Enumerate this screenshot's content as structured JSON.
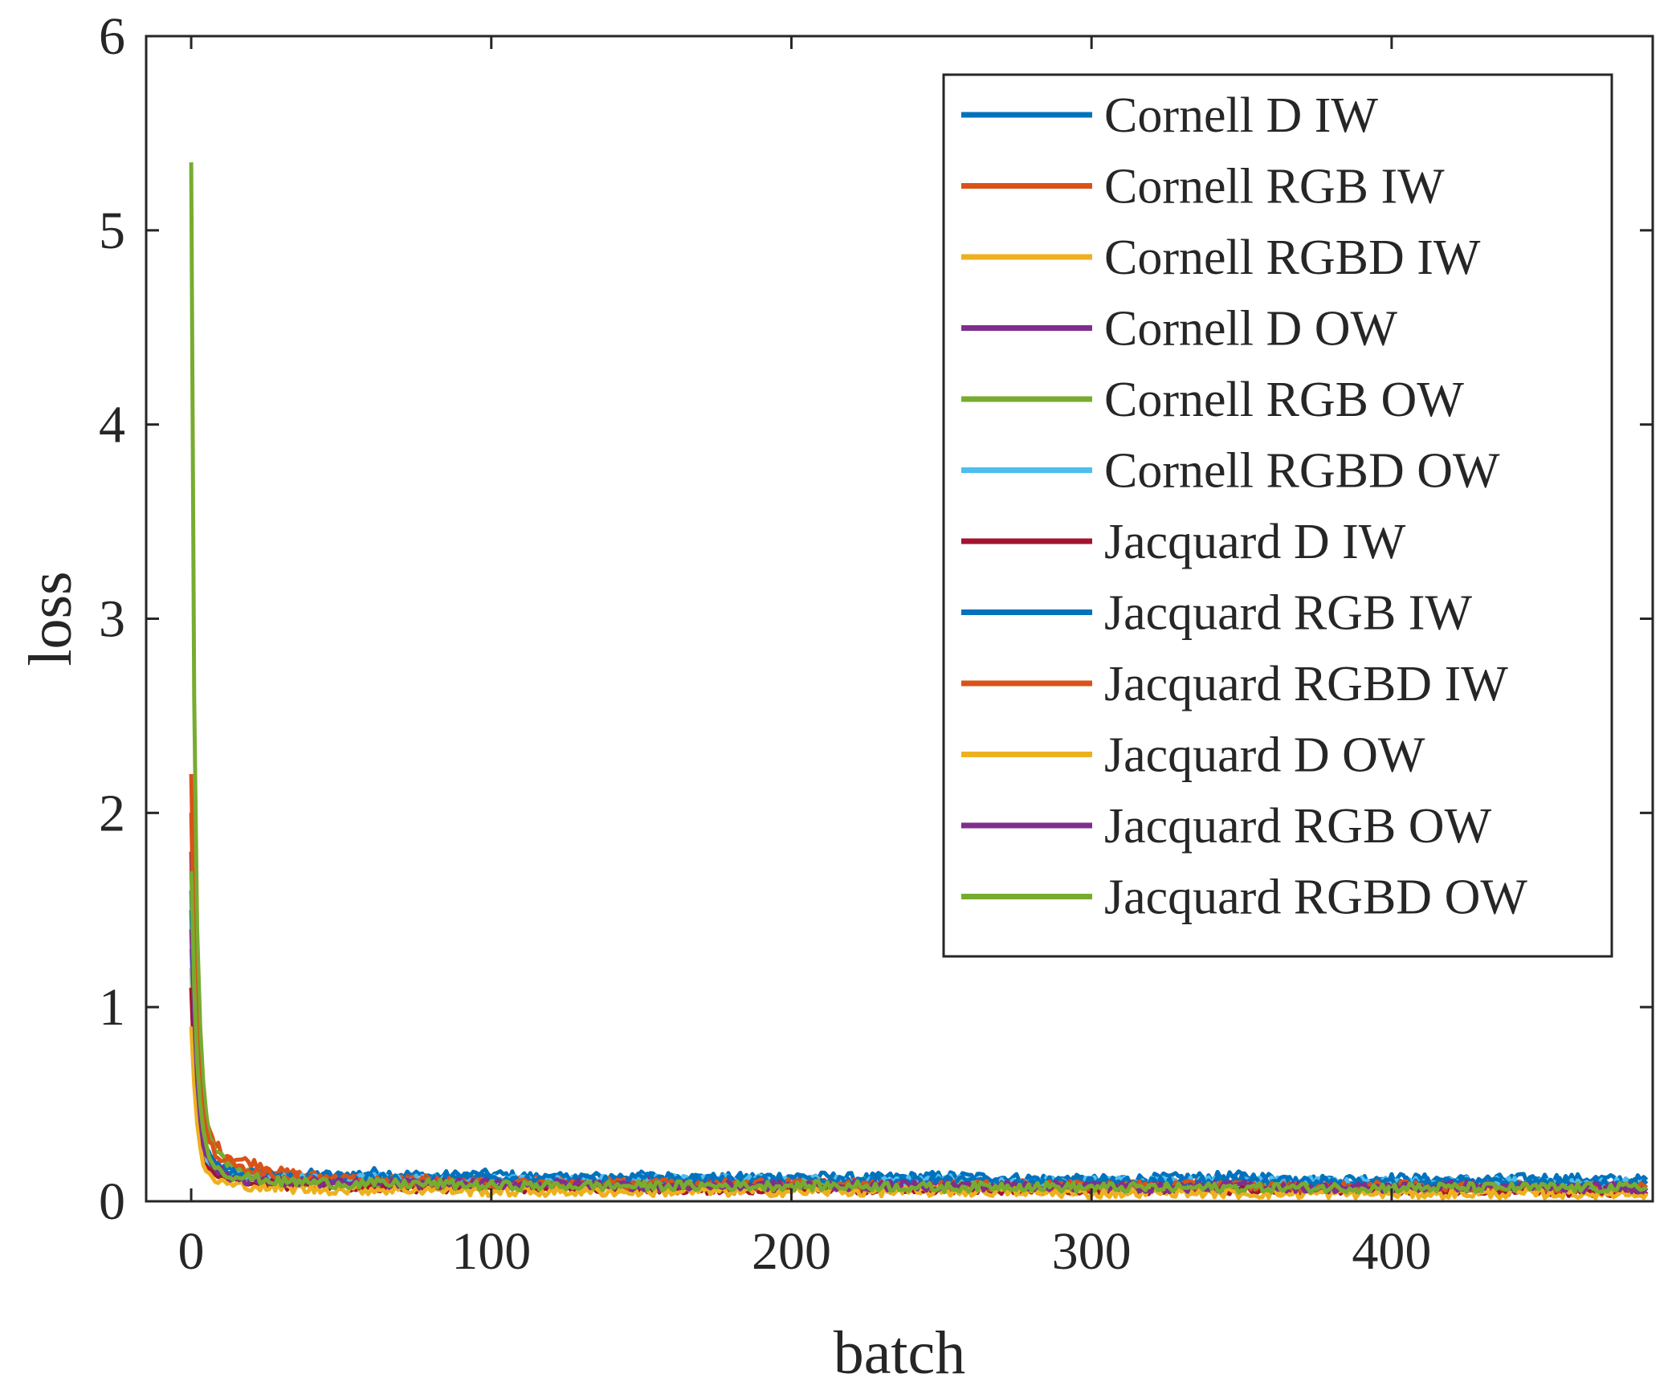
{
  "chart_data": {
    "type": "line",
    "title": "",
    "xlabel": "batch",
    "ylabel": "loss",
    "xlim": [
      -15,
      487
    ],
    "ylim": [
      0,
      6
    ],
    "xticks": [
      0,
      100,
      200,
      300,
      400
    ],
    "xtick_labels": [
      "0",
      "100",
      "200",
      "300",
      "400"
    ],
    "yticks": [
      0,
      1,
      2,
      3,
      4,
      5,
      6
    ],
    "ytick_labels": [
      "0",
      "1",
      "2",
      "3",
      "4",
      "5",
      "6"
    ],
    "grid": false,
    "legend_position": "top-right",
    "x": [
      0,
      1,
      2,
      3,
      4,
      5,
      6,
      8,
      10,
      12,
      15,
      20,
      25,
      30,
      40,
      50,
      60,
      80,
      100,
      120,
      150,
      175,
      200,
      225,
      250,
      275,
      300,
      325,
      350,
      375,
      400,
      425,
      450,
      485
    ],
    "series": [
      {
        "name": "Cornell D IW",
        "color": "#0072BD",
        "values": [
          1.5,
          1.0,
          0.65,
          0.45,
          0.32,
          0.26,
          0.22,
          0.19,
          0.17,
          0.16,
          0.15,
          0.14,
          0.14,
          0.13,
          0.14,
          0.13,
          0.15,
          0.13,
          0.14,
          0.12,
          0.13,
          0.12,
          0.13,
          0.12,
          0.13,
          0.12,
          0.11,
          0.12,
          0.13,
          0.11,
          0.12,
          0.11,
          0.12,
          0.11
        ]
      },
      {
        "name": "Cornell RGB IW",
        "color": "#D95319",
        "values": [
          2.2,
          1.4,
          0.95,
          0.7,
          0.5,
          0.42,
          0.36,
          0.3,
          0.26,
          0.24,
          0.22,
          0.2,
          0.18,
          0.15,
          0.13,
          0.12,
          0.11,
          0.11,
          0.1,
          0.1,
          0.1,
          0.09,
          0.1,
          0.09,
          0.09,
          0.09,
          0.08,
          0.09,
          0.08,
          0.08,
          0.08,
          0.08,
          0.08,
          0.07
        ]
      },
      {
        "name": "Cornell RGBD IW",
        "color": "#EDB120",
        "values": [
          1.2,
          0.8,
          0.5,
          0.35,
          0.27,
          0.22,
          0.19,
          0.16,
          0.14,
          0.13,
          0.12,
          0.11,
          0.1,
          0.1,
          0.09,
          0.09,
          0.08,
          0.08,
          0.08,
          0.07,
          0.07,
          0.07,
          0.07,
          0.07,
          0.06,
          0.06,
          0.06,
          0.06,
          0.06,
          0.06,
          0.06,
          0.06,
          0.05,
          0.05
        ]
      },
      {
        "name": "Cornell D OW",
        "color": "#7E2F8E",
        "values": [
          1.8,
          1.1,
          0.7,
          0.48,
          0.34,
          0.27,
          0.22,
          0.18,
          0.16,
          0.14,
          0.13,
          0.12,
          0.11,
          0.11,
          0.1,
          0.1,
          0.1,
          0.09,
          0.1,
          0.09,
          0.1,
          0.09,
          0.09,
          0.08,
          0.09,
          0.08,
          0.08,
          0.08,
          0.08,
          0.08,
          0.08,
          0.07,
          0.08,
          0.07
        ]
      },
      {
        "name": "Cornell RGB OW",
        "color": "#77AC30",
        "values": [
          5.35,
          2.6,
          1.4,
          0.9,
          0.6,
          0.45,
          0.36,
          0.28,
          0.23,
          0.2,
          0.17,
          0.14,
          0.12,
          0.11,
          0.1,
          0.1,
          0.09,
          0.09,
          0.09,
          0.08,
          0.09,
          0.08,
          0.08,
          0.08,
          0.08,
          0.08,
          0.07,
          0.08,
          0.07,
          0.07,
          0.07,
          0.07,
          0.07,
          0.07
        ]
      },
      {
        "name": "Cornell RGBD OW",
        "color": "#4DBEEE",
        "values": [
          1.3,
          0.9,
          0.6,
          0.42,
          0.3,
          0.24,
          0.2,
          0.17,
          0.15,
          0.14,
          0.13,
          0.12,
          0.12,
          0.12,
          0.11,
          0.11,
          0.12,
          0.11,
          0.11,
          0.11,
          0.11,
          0.11,
          0.11,
          0.1,
          0.11,
          0.1,
          0.1,
          0.1,
          0.1,
          0.1,
          0.1,
          0.1,
          0.1,
          0.09
        ]
      },
      {
        "name": "Jacquard D IW",
        "color": "#A2142F",
        "values": [
          1.1,
          0.7,
          0.45,
          0.3,
          0.22,
          0.18,
          0.15,
          0.13,
          0.12,
          0.11,
          0.1,
          0.09,
          0.09,
          0.08,
          0.08,
          0.08,
          0.07,
          0.07,
          0.07,
          0.07,
          0.07,
          0.06,
          0.07,
          0.06,
          0.06,
          0.06,
          0.06,
          0.06,
          0.06,
          0.06,
          0.06,
          0.06,
          0.05,
          0.05
        ]
      },
      {
        "name": "Jacquard RGB IW",
        "color": "#0072BD",
        "values": [
          1.6,
          1.05,
          0.7,
          0.48,
          0.35,
          0.28,
          0.23,
          0.19,
          0.17,
          0.16,
          0.15,
          0.14,
          0.13,
          0.13,
          0.12,
          0.12,
          0.12,
          0.11,
          0.12,
          0.11,
          0.12,
          0.11,
          0.11,
          0.1,
          0.11,
          0.1,
          0.1,
          0.1,
          0.11,
          0.1,
          0.1,
          0.1,
          0.1,
          0.09
        ]
      },
      {
        "name": "Jacquard RGBD IW",
        "color": "#D95319",
        "values": [
          2.0,
          1.3,
          0.85,
          0.6,
          0.45,
          0.36,
          0.3,
          0.25,
          0.22,
          0.2,
          0.18,
          0.17,
          0.15,
          0.13,
          0.12,
          0.11,
          0.1,
          0.1,
          0.09,
          0.09,
          0.09,
          0.09,
          0.09,
          0.08,
          0.08,
          0.08,
          0.08,
          0.08,
          0.08,
          0.07,
          0.08,
          0.07,
          0.07,
          0.07
        ]
      },
      {
        "name": "Jacquard D OW",
        "color": "#EDB120",
        "values": [
          0.9,
          0.6,
          0.4,
          0.28,
          0.2,
          0.16,
          0.13,
          0.11,
          0.1,
          0.09,
          0.08,
          0.08,
          0.07,
          0.07,
          0.06,
          0.06,
          0.06,
          0.06,
          0.05,
          0.05,
          0.05,
          0.05,
          0.05,
          0.05,
          0.05,
          0.05,
          0.04,
          0.05,
          0.04,
          0.04,
          0.04,
          0.04,
          0.04,
          0.04
        ]
      },
      {
        "name": "Jacquard RGB OW",
        "color": "#7E2F8E",
        "values": [
          1.4,
          0.95,
          0.62,
          0.42,
          0.3,
          0.24,
          0.2,
          0.17,
          0.15,
          0.13,
          0.12,
          0.11,
          0.1,
          0.1,
          0.1,
          0.09,
          0.09,
          0.09,
          0.09,
          0.09,
          0.08,
          0.08,
          0.08,
          0.08,
          0.08,
          0.08,
          0.08,
          0.07,
          0.08,
          0.07,
          0.07,
          0.08,
          0.07,
          0.07
        ]
      },
      {
        "name": "Jacquard RGBD OW",
        "color": "#77AC30",
        "values": [
          1.7,
          1.1,
          0.72,
          0.5,
          0.36,
          0.28,
          0.23,
          0.19,
          0.16,
          0.14,
          0.13,
          0.12,
          0.11,
          0.1,
          0.1,
          0.09,
          0.09,
          0.09,
          0.08,
          0.08,
          0.08,
          0.08,
          0.08,
          0.08,
          0.07,
          0.08,
          0.07,
          0.07,
          0.07,
          0.07,
          0.07,
          0.07,
          0.07,
          0.07
        ]
      }
    ]
  }
}
